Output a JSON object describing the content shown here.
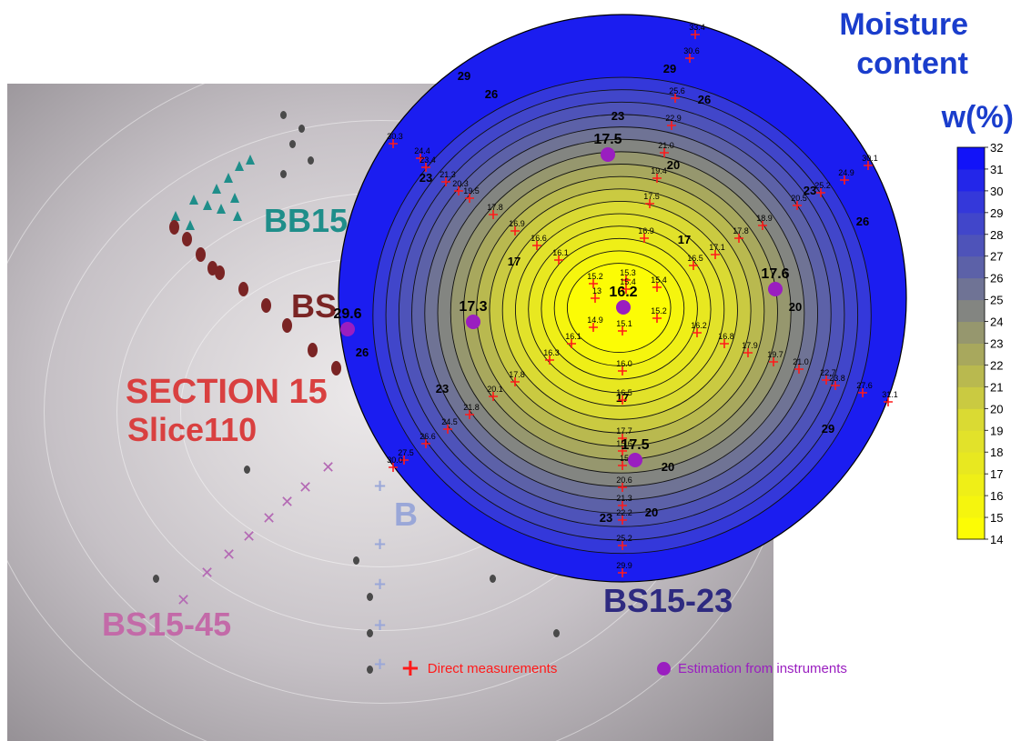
{
  "title": {
    "line1": "Moisture",
    "line2": "content",
    "unit": "w(%)"
  },
  "photo_labels": {
    "bb": "BB15",
    "bs": "BS",
    "section": "SECTION 15",
    "slice": "Slice110",
    "b": "B",
    "bs23": "BS15-23",
    "bs45": "BS15-45"
  },
  "legend": {
    "direct": "Direct measurements",
    "estimation": "Estimation from instruments"
  },
  "colors": {
    "photo_bb": "#1f8e8a",
    "photo_bs": "#7a2424",
    "photo_section": "#d94040",
    "photo_b": "#9aa7d8",
    "photo_bs23": "#2e2a80",
    "photo_bs45": "#c36aa8",
    "direct_marker": "#ff1a1a",
    "estimate_marker": "#9a1ec0",
    "title": "#1a3dcc"
  },
  "chart_data": {
    "type": "heatmap",
    "title": "Moisture content",
    "colorbar_label": "w(%)",
    "colorbar_range": [
      14,
      32
    ],
    "colorbar_ticks": [
      14,
      15,
      16,
      17,
      18,
      19,
      20,
      21,
      22,
      23,
      24,
      25,
      26,
      27,
      28,
      29,
      30,
      31,
      32
    ],
    "contour_labels": [
      "17",
      "17",
      "17",
      "20",
      "20",
      "20",
      "20",
      "23",
      "23",
      "23",
      "23",
      "23",
      "26",
      "26",
      "26",
      "26",
      "29",
      "29",
      "29"
    ],
    "direct_measurements": [
      "33.4",
      "30.6",
      "25.6",
      "22.9",
      "21.0",
      "19.4",
      "17.5",
      "16.9",
      "16.5",
      "15.4",
      "15.2",
      "16.2",
      "16.8",
      "17.9",
      "19.7",
      "21.0",
      "22.7",
      "23.8",
      "27.6",
      "31.1",
      "16.0",
      "16.5",
      "17.7",
      "15.6",
      "15",
      "20.6",
      "21.3",
      "22.2",
      "25.2",
      "29.9",
      "17.8",
      "16.9",
      "16.6",
      "16.1",
      "15.2",
      "15.3",
      "15.4",
      "13",
      "14.9",
      "15.1",
      "16.1",
      "16.3",
      "17.8",
      "20.1",
      "21.8",
      "24.5",
      "26.6",
      "27.5",
      "30.0",
      "17.1",
      "17.8",
      "18.9",
      "20.5",
      "25.2",
      "24.9",
      "30.1",
      "30.3",
      "24.4",
      "23.4",
      "21.3",
      "20.3",
      "19.5"
    ],
    "instrument_estimates": [
      "17.5",
      "17.6",
      "16.2",
      "17.3",
      "29.6",
      "17.5"
    ]
  }
}
